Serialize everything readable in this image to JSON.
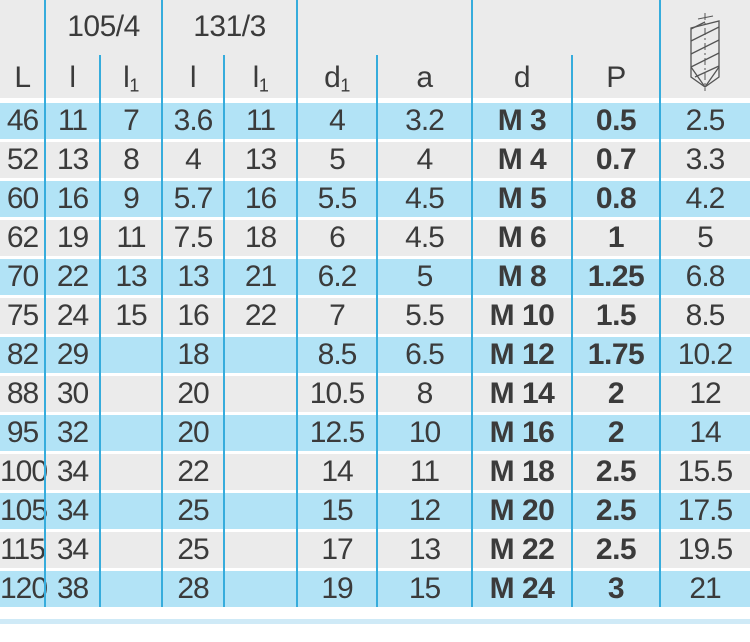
{
  "colors": {
    "row_blue": "#b2e3f6",
    "row_gray": "#ebebeb",
    "header_bg": "#ebebeb",
    "grid_line": "#36acdc",
    "text": "#3b3b3b",
    "bottom_strip": "#cfeaf7"
  },
  "table": {
    "groups": [
      {
        "label": "105/4"
      },
      {
        "label": "131/3"
      }
    ],
    "columns": [
      {
        "base": "L",
        "sub": ""
      },
      {
        "base": "l",
        "sub": ""
      },
      {
        "base": "l",
        "sub": "1"
      },
      {
        "base": "l",
        "sub": ""
      },
      {
        "base": "l",
        "sub": "1"
      },
      {
        "base": "d",
        "sub": "1"
      },
      {
        "base": "a",
        "sub": ""
      },
      {
        "base": "d",
        "sub": ""
      },
      {
        "base": "P",
        "sub": ""
      },
      {
        "base": "",
        "sub": "",
        "icon": "drill-bit-icon"
      }
    ],
    "bold_columns": [
      7,
      8
    ],
    "rows": [
      [
        "46",
        "11",
        "7",
        "3.6",
        "11",
        "4",
        "3.2",
        "M 3",
        "0.5",
        "2.5"
      ],
      [
        "52",
        "13",
        "8",
        "4",
        "13",
        "5",
        "4",
        "M 4",
        "0.7",
        "3.3"
      ],
      [
        "60",
        "16",
        "9",
        "5.7",
        "16",
        "5.5",
        "4.5",
        "M 5",
        "0.8",
        "4.2"
      ],
      [
        "62",
        "19",
        "11",
        "7.5",
        "18",
        "6",
        "4.5",
        "M 6",
        "1",
        "5"
      ],
      [
        "70",
        "22",
        "13",
        "13",
        "21",
        "6.2",
        "5",
        "M 8",
        "1.25",
        "6.8"
      ],
      [
        "75",
        "24",
        "15",
        "16",
        "22",
        "7",
        "5.5",
        "M 10",
        "1.5",
        "8.5"
      ],
      [
        "82",
        "29",
        "",
        "18",
        "",
        "8.5",
        "6.5",
        "M 12",
        "1.75",
        "10.2"
      ],
      [
        "88",
        "30",
        "",
        "20",
        "",
        "10.5",
        "8",
        "M 14",
        "2",
        "12"
      ],
      [
        "95",
        "32",
        "",
        "20",
        "",
        "12.5",
        "10",
        "M 16",
        "2",
        "14"
      ],
      [
        "100",
        "34",
        "",
        "22",
        "",
        "14",
        "11",
        "M 18",
        "2.5",
        "15.5"
      ],
      [
        "105",
        "34",
        "",
        "25",
        "",
        "15",
        "12",
        "M 20",
        "2.5",
        "17.5"
      ],
      [
        "115",
        "34",
        "",
        "25",
        "",
        "17",
        "13",
        "M 22",
        "2.5",
        "19.5"
      ],
      [
        "120",
        "38",
        "",
        "28",
        "",
        "19",
        "15",
        "M 24",
        "3",
        "21"
      ]
    ]
  }
}
